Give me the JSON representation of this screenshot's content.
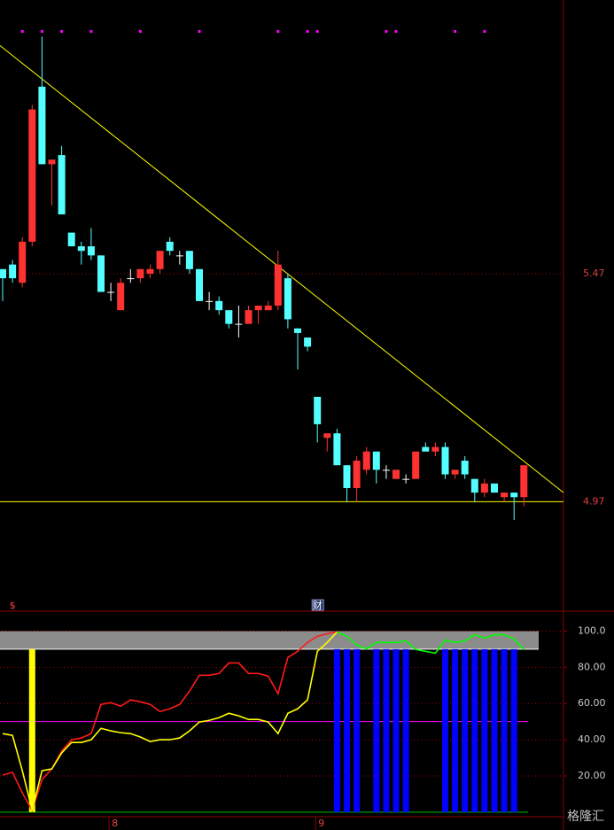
{
  "chart_data": [
    {
      "type": "candlestick",
      "ylim": [
        4.73,
        6.07
      ],
      "yticks": [
        4.97,
        5.47
      ],
      "grid_colors": [
        "#ffff00",
        "#a00000"
      ],
      "open": [
        5.48,
        5.49,
        5.45,
        5.54,
        5.88,
        5.71,
        5.73,
        5.56,
        5.53,
        5.53,
        5.51,
        5.43,
        5.39,
        5.46,
        5.46,
        5.47,
        5.48,
        5.54,
        5.51,
        5.52,
        5.48,
        5.41,
        5.41,
        5.39,
        5.36,
        5.36,
        5.39,
        5.39,
        5.4,
        5.46,
        5.35,
        5.33,
        5.2,
        5.11,
        5.12,
        5.05,
        5.0,
        5.04,
        5.08,
        5.04,
        5.02,
        5.02,
        5.02,
        5.09,
        5.08,
        5.09,
        5.03,
        5.06,
        5.02,
        4.99,
        5.01,
        4.98,
        4.99,
        4.98
      ],
      "high": [
        5.48,
        5.5,
        5.55,
        5.84,
        5.99,
        5.72,
        5.75,
        5.56,
        5.54,
        5.57,
        5.51,
        5.45,
        5.46,
        5.48,
        5.48,
        5.49,
        5.52,
        5.55,
        5.52,
        5.52,
        5.48,
        5.43,
        5.42,
        5.39,
        5.4,
        5.4,
        5.4,
        5.41,
        5.52,
        5.47,
        5.35,
        5.33,
        5.2,
        5.12,
        5.13,
        5.05,
        5.07,
        5.09,
        5.08,
        5.05,
        5.04,
        5.03,
        5.08,
        5.1,
        5.1,
        5.1,
        5.04,
        5.07,
        5.02,
        5.02,
        5.01,
        4.99,
        4.99,
        5.05
      ],
      "low": [
        5.41,
        5.45,
        5.44,
        5.53,
        5.71,
        5.62,
        5.6,
        5.53,
        5.49,
        5.5,
        5.43,
        5.41,
        5.39,
        5.45,
        5.45,
        5.46,
        5.47,
        5.51,
        5.49,
        5.47,
        5.41,
        5.39,
        5.38,
        5.35,
        5.33,
        5.36,
        5.36,
        5.39,
        5.39,
        5.35,
        5.26,
        5.3,
        5.1,
        5.08,
        5.05,
        4.97,
        4.97,
        5.03,
        5.01,
        5.02,
        5.02,
        5.01,
        5.02,
        5.08,
        5.07,
        5.02,
        5.02,
        5.02,
        4.97,
        4.98,
        4.99,
        4.97,
        4.93,
        4.96
      ],
      "close": [
        5.46,
        5.46,
        5.54,
        5.83,
        5.71,
        5.72,
        5.6,
        5.53,
        5.52,
        5.51,
        5.43,
        5.43,
        5.45,
        5.46,
        5.48,
        5.48,
        5.52,
        5.52,
        5.51,
        5.48,
        5.41,
        5.41,
        5.39,
        5.36,
        5.36,
        5.39,
        5.4,
        5.4,
        5.49,
        5.37,
        5.34,
        5.31,
        5.14,
        5.12,
        5.05,
        5.0,
        5.06,
        5.08,
        5.04,
        5.04,
        5.04,
        5.02,
        5.08,
        5.08,
        5.09,
        5.03,
        5.04,
        5.03,
        4.99,
        5.01,
        4.99,
        4.99,
        4.98,
        5.05
      ],
      "up_color": "#ff3232",
      "down_color": "#54ffff",
      "flat_color": "#ffffff",
      "trendline": [
        5.97,
        4.99
      ],
      "trendline_color": "#ffff00",
      "signal_dots": [
        2,
        4,
        6,
        9,
        14,
        20,
        28,
        31,
        32,
        39,
        40,
        46,
        49
      ],
      "signal_color": "#ff00ff",
      "events": [
        {
          "index": 1,
          "label": "$"
        },
        {
          "index": 32,
          "label": "财"
        }
      ]
    },
    {
      "type": "line",
      "categories": [
        null,
        null,
        null,
        null,
        null,
        null,
        null,
        null,
        null,
        null,
        null,
        "8",
        null,
        null,
        null,
        null,
        null,
        null,
        null,
        null,
        null,
        null,
        null,
        null,
        null,
        null,
        null,
        null,
        null,
        null,
        null,
        null,
        "9",
        null,
        null,
        null,
        null,
        null,
        null,
        null,
        null,
        null,
        null,
        null,
        null,
        null,
        null,
        null,
        null,
        null,
        null,
        null,
        null,
        null
      ],
      "ylim": [
        -2.5,
        110
      ],
      "yticks": [
        {
          "value": 20,
          "label": "20.00"
        },
        {
          "value": 40,
          "label": "40.00"
        },
        {
          "value": 60,
          "label": "60.00"
        },
        {
          "value": 80,
          "label": "80.00"
        },
        {
          "value": 100,
          "label": "100.0"
        }
      ],
      "grid": true,
      "band": [
        90,
        100
      ],
      "ref_lines": [
        {
          "value": 50,
          "color": "#ff00ff"
        },
        {
          "value": 0,
          "color": "#00c000"
        }
      ],
      "series": [
        {
          "color": "#ff1a1a",
          "values": [
            20.5,
            22.0,
            10.7,
            1.0,
            18.0,
            23.9,
            33.7,
            40.0,
            41.0,
            43.4,
            59.5,
            60.5,
            58.5,
            62.0,
            61.0,
            59.5,
            55.6,
            57.1,
            59.5,
            66.8,
            75.6,
            75.6,
            76.6,
            82.4,
            82.4,
            76.6,
            76.6,
            75.1,
            65.4,
            85.4,
            88.8,
            93.7,
            97.1,
            98.5,
            99.5,
            null,
            null,
            null,
            null,
            null,
            null,
            null,
            null,
            null,
            null,
            null,
            null,
            null,
            null,
            null,
            null,
            null,
            null,
            null
          ]
        },
        {
          "color": "#ffff00",
          "values": [
            43.4,
            42.4,
            22.9,
            1.0,
            22.9,
            23.9,
            32.7,
            38.5,
            38.5,
            40.0,
            46.3,
            44.9,
            43.9,
            43.4,
            41.5,
            39.0,
            40.0,
            40.0,
            41.0,
            44.9,
            49.8,
            50.7,
            52.2,
            54.6,
            53.2,
            51.2,
            51.2,
            49.8,
            43.4,
            54.6,
            57.1,
            62.0,
            88.8,
            93.7,
            99.5,
            null,
            null,
            null,
            null,
            null,
            null,
            null,
            null,
            null,
            null,
            null,
            null,
            null,
            null,
            null,
            null,
            null,
            null,
            null
          ]
        },
        {
          "color": "#00ff00",
          "values": [
            null,
            null,
            null,
            null,
            null,
            null,
            null,
            null,
            null,
            null,
            null,
            null,
            null,
            null,
            null,
            null,
            null,
            null,
            null,
            null,
            null,
            null,
            null,
            null,
            null,
            null,
            null,
            null,
            null,
            null,
            null,
            null,
            null,
            null,
            99.5,
            97.1,
            92.2,
            90.2,
            93.7,
            93.7,
            93.7,
            94.6,
            89.8,
            88.8,
            87.8,
            95.1,
            93.7,
            94.6,
            98.0,
            96.1,
            98.0,
            98.0,
            95.6,
            89.8
          ]
        }
      ],
      "bar_series": [
        {
          "color": "#ffff00",
          "values": [
            null,
            null,
            null,
            90,
            null,
            null,
            null,
            null,
            null,
            null,
            null,
            null,
            null,
            null,
            null,
            null,
            null,
            null,
            null,
            null,
            null,
            null,
            null,
            null,
            null,
            null,
            null,
            null,
            null,
            null,
            null,
            null,
            null,
            null,
            null,
            null,
            null,
            null,
            null,
            null,
            null,
            null,
            null,
            null,
            null,
            null,
            null,
            null,
            null,
            null,
            null,
            null,
            null,
            null
          ]
        },
        {
          "color": "#0000ff",
          "values": [
            null,
            null,
            null,
            null,
            null,
            null,
            null,
            null,
            null,
            null,
            null,
            null,
            null,
            null,
            null,
            null,
            null,
            null,
            null,
            null,
            null,
            null,
            null,
            null,
            null,
            null,
            null,
            null,
            null,
            null,
            null,
            null,
            null,
            null,
            90,
            90,
            90,
            null,
            90,
            90,
            90,
            90,
            null,
            null,
            null,
            90,
            90,
            90,
            90,
            90,
            90,
            90,
            90,
            null
          ]
        }
      ],
      "watermark": "格隆汇"
    }
  ]
}
